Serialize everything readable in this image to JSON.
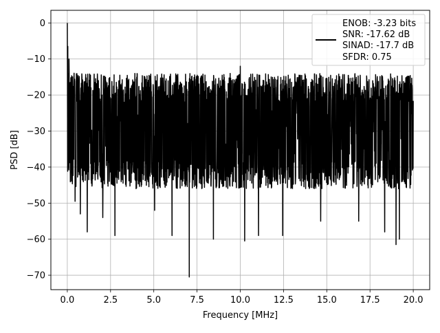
{
  "chart_data": {
    "type": "line",
    "title": "",
    "xlabel": "Frequency [MHz]",
    "ylabel": "PSD [dB]",
    "xlim": [
      -0.95,
      20.95
    ],
    "ylim": [
      -74,
      3.5
    ],
    "xticks": [
      0.0,
      2.5,
      5.0,
      7.5,
      10.0,
      12.5,
      15.0,
      17.5,
      20.0
    ],
    "xtick_labels": [
      "0.0",
      "2.5",
      "5.0",
      "7.5",
      "10.0",
      "12.5",
      "15.0",
      "17.5",
      "20.0"
    ],
    "yticks": [
      0,
      -10,
      -20,
      -30,
      -40,
      -50,
      -60,
      -70
    ],
    "ytick_labels": [
      "0",
      "−10",
      "−20",
      "−30",
      "−40",
      "−50",
      "−60",
      "−70"
    ],
    "grid": true,
    "legend_position": "top-right",
    "legend_entries": [
      "ENOB: -3.23 bits",
      "SNR: -17.62 dB",
      "SINAD: -17.7 dB",
      "SFDR: 0.75"
    ],
    "series": [
      {
        "color": "#000000",
        "x_range": [
          0.0,
          20.0
        ],
        "points": 2049,
        "typical_upper_db": -18,
        "typical_lower_db": -42,
        "noise_floor_db": -30,
        "peaks": [
          {
            "x": 0.0,
            "y": 0
          },
          {
            "x": 0.03,
            "y": -6.5
          },
          {
            "x": 0.1,
            "y": -10
          },
          {
            "x": 10.0,
            "y": -12
          }
        ],
        "notable_dips": [
          {
            "x": 0.45,
            "y": -49.5
          },
          {
            "x": 0.75,
            "y": -53
          },
          {
            "x": 1.15,
            "y": -58
          },
          {
            "x": 2.05,
            "y": -54
          },
          {
            "x": 2.75,
            "y": -59
          },
          {
            "x": 5.05,
            "y": -52
          },
          {
            "x": 6.05,
            "y": -59
          },
          {
            "x": 7.05,
            "y": -70.5
          },
          {
            "x": 8.45,
            "y": -60
          },
          {
            "x": 10.25,
            "y": -60.5
          },
          {
            "x": 11.05,
            "y": -59
          },
          {
            "x": 12.45,
            "y": -59
          },
          {
            "x": 14.65,
            "y": -55
          },
          {
            "x": 16.85,
            "y": -55
          },
          {
            "x": 18.35,
            "y": -58
          },
          {
            "x": 19.0,
            "y": -61.5
          },
          {
            "x": 19.2,
            "y": -60
          }
        ]
      }
    ]
  }
}
